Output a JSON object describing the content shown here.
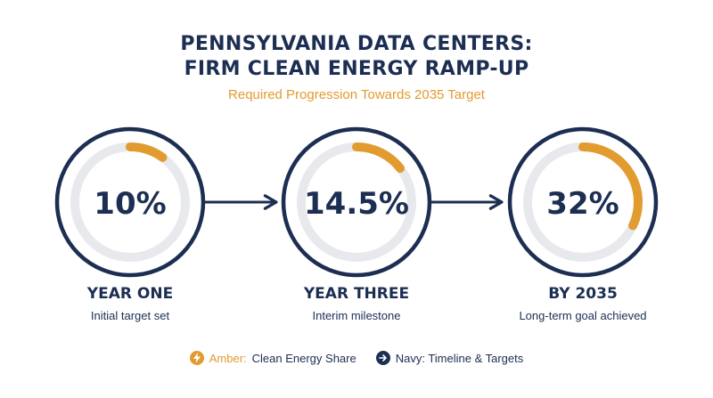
{
  "header": {
    "title_line1": "PENNSYLVANIA DATA CENTERS:",
    "title_line2": "FIRM CLEAN ENERGY RAMP-UP",
    "subtitle": "Required Progression Towards 2035 Target"
  },
  "colors": {
    "navy": "#1c2e52",
    "amber": "#e29b2e",
    "track": "#e8e9ed"
  },
  "chart_data": {
    "type": "gauge",
    "categories": [
      "YEAR ONE",
      "YEAR THREE",
      "BY 2035"
    ],
    "values": [
      10,
      14.5,
      32
    ],
    "value_labels": [
      "10%",
      "14.5%",
      "32%"
    ],
    "descriptions": [
      "Initial target set",
      "Interim milestone",
      "Long-term goal achieved"
    ],
    "unit": "%",
    "ylim": [
      0,
      100
    ]
  },
  "legend": {
    "amber_key": "Amber:",
    "amber_text": "Clean Energy Share",
    "navy_text": "Navy: Timeline & Targets",
    "amber_icon": "lightning-icon",
    "navy_icon": "arrow-right-icon"
  }
}
